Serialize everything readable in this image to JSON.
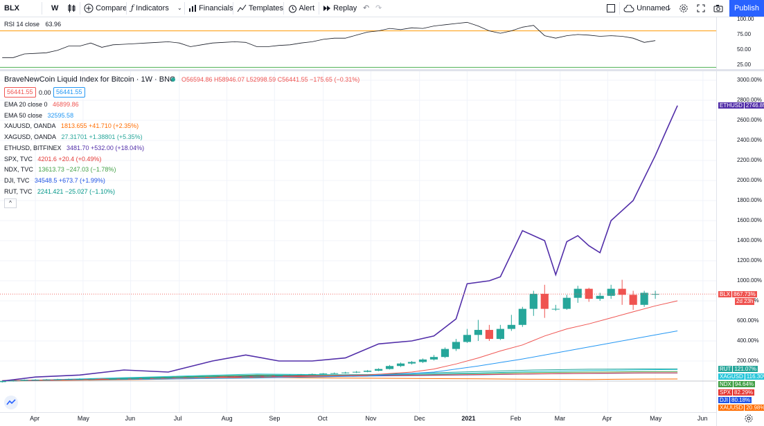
{
  "toolbar": {
    "symbol": "BLX",
    "interval": "W",
    "compare": "Compare",
    "indicators": "Indicators",
    "financials": "Financials",
    "templates": "Templates",
    "alert": "Alert",
    "replay": "Replay",
    "layout_name": "Unnamed",
    "publish": "Publish"
  },
  "rsi": {
    "label": "RSI 14 close",
    "value": "63.96",
    "ticks": [
      "100.00",
      "75.00",
      "50.00",
      "25.00"
    ],
    "line_color": "#131722",
    "upper_band_color": "#ff9800",
    "lower_band_color": "#4caf50"
  },
  "legend": {
    "title": "BraveNewCoin Liquid Index for Bitcoin · 1W · BNC",
    "ohlc": "O56594.86  H58946.07  L52998.59  C56441.55  −175.65 (−0.31%)",
    "bid": "56441.55",
    "spread": "0.00",
    "ask": "56441.55",
    "collapse": "^",
    "rows": [
      {
        "name": "EMA 20 close 0",
        "value": "46899.86",
        "color": "#ef5350"
      },
      {
        "name": "EMA 50 close",
        "value": "32595.58",
        "color": "#2196f3"
      },
      {
        "name": "XAUUSD, OANDA",
        "value": "1813.655  +41.710 (+2.35%)",
        "color": "#ff6d00"
      },
      {
        "name": "XAGUSD, OANDA",
        "value": "27.31701  +1.38801 (+5.35%)",
        "color": "#26a69a"
      },
      {
        "name": "ETHUSD, BITFINEX",
        "value": "3481.70  +532.00 (+18.04%)",
        "color": "#512da8"
      },
      {
        "name": "SPX, TVC",
        "value": "4201.6  +20.4 (+0.49%)",
        "color": "#e53935"
      },
      {
        "name": "NDX, TVC",
        "value": "13613.73  −247.03 (−1.78%)",
        "color": "#43a047"
      },
      {
        "name": "DJI, TVC",
        "value": "34548.5  +673.7 (+1.99%)",
        "color": "#1e53e5"
      },
      {
        "name": "RUT, TVC",
        "value": "2241.421  −25.027 (−1.10%)",
        "color": "#009688"
      }
    ]
  },
  "badges": [
    {
      "label": "ETHUSD",
      "value": "2746.85%",
      "color": "#512da8"
    },
    {
      "label": "BLX",
      "value": "867.73%",
      "color": "#ef5350"
    },
    {
      "label": "",
      "value": "2d 23h",
      "color": "#ef5350"
    },
    {
      "label": "RUT",
      "value": "121.07%",
      "color": "#26a69a"
    },
    {
      "label": "XAGUSD",
      "value": "116.30%",
      "color": "#26c6da"
    },
    {
      "label": "NDX",
      "value": "94.64%",
      "color": "#43a047"
    },
    {
      "label": "SPX",
      "value": "82.29%",
      "color": "#e53935"
    },
    {
      "label": "DJI",
      "value": "80.18%",
      "color": "#1e53e5"
    },
    {
      "label": "XAUUSD",
      "value": "20.98%",
      "color": "#ff6d00"
    }
  ],
  "chart_data": {
    "type": "line",
    "title": "BraveNewCoin Liquid Index for Bitcoin",
    "ylabel": "",
    "xlabel": "",
    "y_scale": "percent",
    "ylim": [
      -150,
      3150
    ],
    "y_ticks": [
      "3000.00%",
      "2800.00%",
      "2600.00%",
      "2400.00%",
      "2200.00%",
      "2000.00%",
      "1800.00%",
      "1600.00%",
      "1400.00%",
      "1200.00%",
      "1000.00%",
      "800.00%",
      "600.00%",
      "400.00%",
      "200.00%"
    ],
    "y_tick_values": [
      3000,
      2800,
      2600,
      2400,
      2200,
      2000,
      1800,
      1600,
      1400,
      1200,
      1000,
      800,
      600,
      400,
      200
    ],
    "x_ticks": [
      "Apr",
      "May",
      "Jun",
      "Jul",
      "Aug",
      "Sep",
      "Oct",
      "Nov",
      "Dec",
      "2021",
      "Feb",
      "Mar",
      "Apr",
      "May",
      "Jun"
    ],
    "x_tick_weeks": [
      0,
      4.3,
      8.6,
      13,
      17.3,
      21.6,
      26,
      30.3,
      34.7,
      39,
      43.4,
      47.4,
      51.7,
      56,
      60.3
    ],
    "grid": true,
    "legend_position": "top-left",
    "candles": {
      "name": "BLX",
      "weeks": [
        -3,
        -2,
        -1,
        0,
        1,
        2,
        3,
        4,
        5,
        6,
        7,
        8,
        9,
        10,
        11,
        12,
        13,
        14,
        15,
        16,
        17,
        18,
        19,
        20,
        21,
        22,
        23,
        24,
        25,
        26,
        27,
        28,
        29,
        30,
        31,
        32,
        33,
        34,
        35,
        36,
        37,
        38,
        39,
        40,
        41,
        42,
        43,
        44,
        45,
        46,
        47,
        48,
        49,
        50,
        51,
        52,
        53,
        54,
        55,
        56
      ],
      "open": [
        -10,
        0,
        5,
        12,
        14,
        16,
        18,
        20,
        20,
        23,
        20,
        22,
        24,
        26,
        28,
        32,
        35,
        38,
        40,
        42,
        45,
        43,
        42,
        44,
        46,
        50,
        55,
        60,
        65,
        70,
        75,
        78,
        85,
        92,
        103,
        120,
        150,
        175,
        190,
        215,
        240,
        320,
        390,
        460,
        510,
        420,
        520,
        560,
        720,
        870,
        720,
        720,
        830,
        920,
        820,
        850,
        920,
        860,
        760,
        868
      ],
      "close": [
        0,
        5,
        12,
        14,
        16,
        18,
        20,
        20,
        23,
        20,
        22,
        24,
        26,
        28,
        32,
        35,
        38,
        40,
        42,
        45,
        43,
        42,
        44,
        46,
        50,
        55,
        60,
        65,
        70,
        75,
        78,
        85,
        92,
        103,
        120,
        150,
        175,
        190,
        215,
        240,
        320,
        390,
        460,
        510,
        420,
        520,
        560,
        720,
        870,
        720,
        720,
        830,
        920,
        820,
        850,
        920,
        860,
        760,
        880,
        868
      ],
      "high": [
        5,
        12,
        16,
        18,
        20,
        22,
        24,
        26,
        28,
        28,
        27,
        28,
        30,
        32,
        36,
        40,
        42,
        45,
        47,
        50,
        50,
        48,
        48,
        50,
        55,
        60,
        66,
        70,
        75,
        80,
        85,
        92,
        100,
        110,
        128,
        160,
        185,
        200,
        225,
        260,
        335,
        420,
        520,
        610,
        560,
        560,
        660,
        740,
        900,
        960,
        760,
        860,
        950,
        930,
        880,
        960,
        1010,
        900,
        900,
        900
      ],
      "low": [
        -15,
        -5,
        0,
        8,
        10,
        12,
        15,
        16,
        17,
        16,
        18,
        20,
        22,
        24,
        26,
        30,
        33,
        36,
        38,
        40,
        40,
        38,
        38,
        40,
        44,
        48,
        52,
        56,
        60,
        66,
        70,
        74,
        80,
        88,
        98,
        115,
        140,
        165,
        180,
        205,
        230,
        300,
        380,
        400,
        400,
        410,
        500,
        540,
        650,
        630,
        700,
        710,
        780,
        790,
        800,
        820,
        760,
        710,
        740,
        820
      ],
      "up_color": "#26a69a",
      "down_color": "#ef5350",
      "last_value": 867.73
    },
    "series": [
      {
        "name": "ETHUSD",
        "color": "#512da8",
        "weeks": [
          -3,
          0,
          4,
          8,
          12,
          16,
          19,
          22,
          25,
          28,
          31,
          34,
          36,
          38,
          39,
          41,
          42,
          44,
          46,
          47,
          48,
          49,
          50,
          51,
          52,
          54,
          56,
          57,
          58
        ],
        "values": [
          0,
          40,
          60,
          110,
          90,
          200,
          260,
          200,
          200,
          230,
          370,
          400,
          450,
          620,
          970,
          1000,
          1040,
          1500,
          1400,
          1060,
          1390,
          1450,
          1350,
          1280,
          1600,
          1800,
          2250,
          2500,
          2747
        ]
      },
      {
        "name": "EMA 20",
        "color": "#ef5350",
        "weeks": [
          -3,
          8,
          16,
          24,
          30,
          34,
          36,
          38,
          40,
          42,
          44,
          46,
          48,
          50,
          52,
          54,
          56,
          58
        ],
        "values": [
          5,
          20,
          35,
          45,
          60,
          90,
          120,
          170,
          230,
          300,
          360,
          450,
          520,
          570,
          630,
          690,
          750,
          800
        ]
      },
      {
        "name": "EMA 50",
        "color": "#2196f3",
        "weeks": [
          -3,
          10,
          20,
          30,
          36,
          40,
          44,
          48,
          52,
          56,
          58
        ],
        "values": [
          5,
          18,
          30,
          50,
          90,
          150,
          220,
          300,
          380,
          460,
          500
        ]
      },
      {
        "name": "RUT",
        "color": "#26a69a",
        "weeks": [
          -3,
          10,
          20,
          30,
          40,
          45,
          50,
          55,
          58
        ],
        "values": [
          0,
          30,
          55,
          65,
          95,
          110,
          118,
          121,
          121
        ]
      },
      {
        "name": "XAGUSD",
        "color": "#26c6da",
        "weeks": [
          -3,
          10,
          20,
          30,
          40,
          45,
          50,
          55,
          58
        ],
        "values": [
          0,
          40,
          70,
          60,
          80,
          95,
          105,
          112,
          116
        ]
      },
      {
        "name": "NDX",
        "color": "#43a047",
        "weeks": [
          -3,
          10,
          20,
          30,
          40,
          45,
          50,
          55,
          58
        ],
        "values": [
          0,
          35,
          60,
          60,
          75,
          85,
          90,
          94,
          95
        ]
      },
      {
        "name": "SPX",
        "color": "#e53935",
        "weeks": [
          -3,
          10,
          20,
          30,
          40,
          45,
          50,
          55,
          58
        ],
        "values": [
          0,
          30,
          50,
          55,
          65,
          72,
          78,
          82,
          82
        ]
      },
      {
        "name": "DJI",
        "color": "#1e53e5",
        "weeks": [
          -3,
          10,
          20,
          30,
          40,
          45,
          50,
          55,
          58
        ],
        "values": [
          0,
          25,
          45,
          50,
          62,
          70,
          76,
          80,
          80
        ]
      },
      {
        "name": "XAUUSD",
        "color": "#ff6d00",
        "weeks": [
          -3,
          10,
          20,
          30,
          40,
          45,
          50,
          55,
          58
        ],
        "values": [
          0,
          15,
          35,
          28,
          22,
          18,
          16,
          20,
          21
        ]
      }
    ],
    "rsi_values": [
      36,
      36,
      42,
      43,
      44,
      48,
      55,
      55,
      60,
      53,
      57,
      58,
      59,
      60,
      61,
      62,
      60,
      54,
      57,
      60,
      61,
      62,
      61,
      54,
      54,
      56,
      57,
      60,
      62,
      66,
      68,
      68,
      73,
      78,
      80,
      84,
      82,
      85,
      84,
      88,
      90,
      92,
      94,
      88,
      80,
      76,
      80,
      86,
      89,
      72,
      68,
      72,
      74,
      73,
      71,
      72,
      71,
      68,
      61,
      64
    ]
  }
}
